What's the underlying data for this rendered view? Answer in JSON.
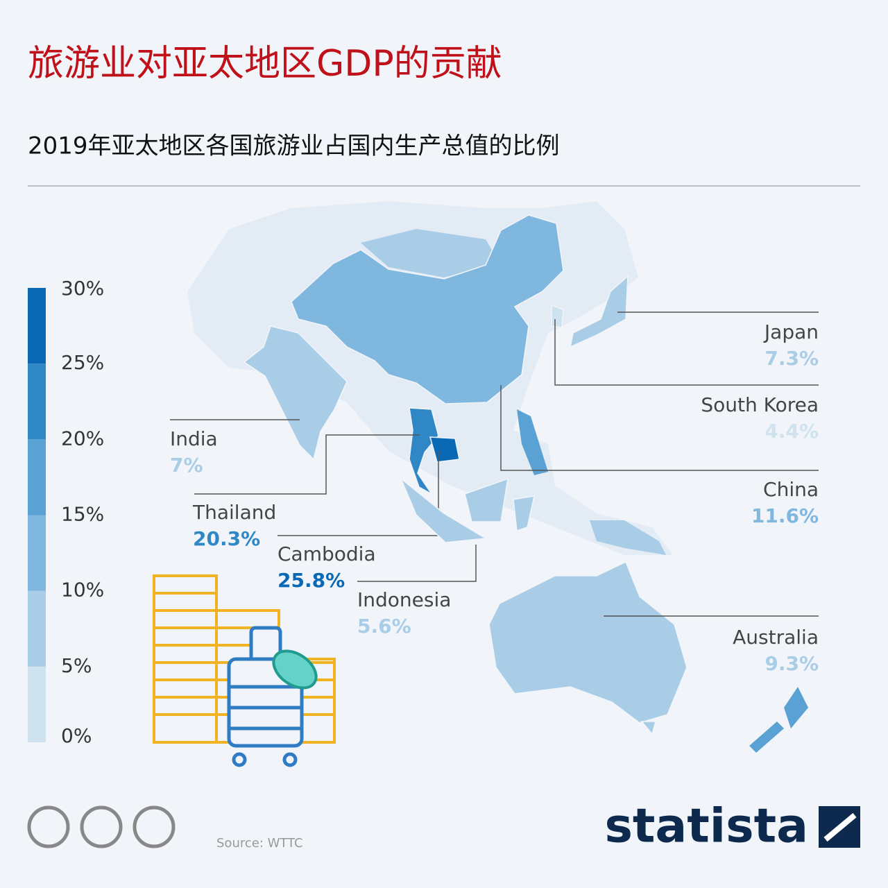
{
  "chart_data": {
    "type": "choropleth",
    "title": "旅游业对亚太地区GDP的贡献",
    "subtitle": "2019年亚太地区各国旅游业占国内生产总值的比例",
    "categories": [
      "Japan",
      "South Korea",
      "China",
      "India",
      "Thailand",
      "Cambodia",
      "Indonesia",
      "Australia"
    ],
    "values": [
      7.3,
      4.4,
      11.6,
      7,
      20.3,
      25.8,
      5.6,
      9.3
    ],
    "value_labels": [
      "7.3%",
      "4.4%",
      "11.6%",
      "7%",
      "20.3%",
      "25.8%",
      "5.6%",
      "9.3%"
    ],
    "ylim": [
      0,
      30
    ],
    "yticks": [
      {
        "value": 0,
        "label": "0%"
      },
      {
        "value": 5,
        "label": "5%"
      },
      {
        "value": 10,
        "label": "10%"
      },
      {
        "value": 15,
        "label": "15%"
      },
      {
        "value": 20,
        "label": "20%"
      },
      {
        "value": 25,
        "label": "25%"
      },
      {
        "value": 30,
        "label": "30%"
      }
    ],
    "colors": [
      "#cfe2f0",
      "#a9cde6",
      "#80b7de",
      "#5aa2d3",
      "#2f87c6",
      "#0b69b3"
    ],
    "source": "Source: WTTC",
    "brand": "statista"
  }
}
